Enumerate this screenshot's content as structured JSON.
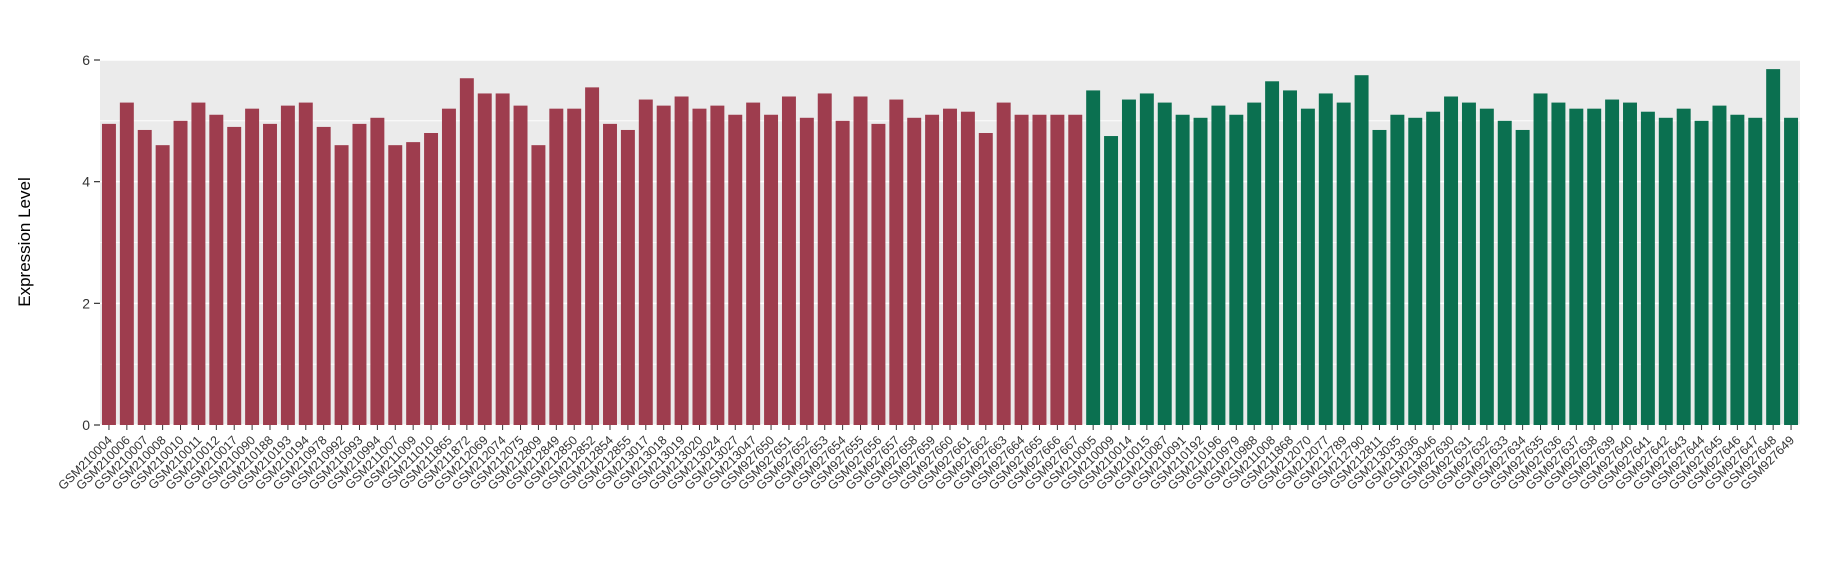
{
  "chart_data": {
    "type": "bar",
    "title": "",
    "xlabel": "",
    "ylabel": "Expression Level",
    "ylim": [
      0,
      6
    ],
    "yticks": [
      0,
      2,
      4,
      6
    ],
    "minor_yticks": [
      1,
      3,
      5
    ],
    "grid": true,
    "legend": "none",
    "panel_bg": "#ebebeb",
    "grid_color": "#ffffff",
    "tick_color": "#333333",
    "group_colors": {
      "group1": "#9e3d4e",
      "group2": "#0b7050"
    },
    "bars": [
      {
        "label": "GSM210004",
        "value": 4.95,
        "group": "group1"
      },
      {
        "label": "GSM210006",
        "value": 5.3,
        "group": "group1"
      },
      {
        "label": "GSM210007",
        "value": 4.85,
        "group": "group1"
      },
      {
        "label": "GSM210008",
        "value": 4.6,
        "group": "group1"
      },
      {
        "label": "GSM210010",
        "value": 5.0,
        "group": "group1"
      },
      {
        "label": "GSM210011",
        "value": 5.3,
        "group": "group1"
      },
      {
        "label": "GSM210012",
        "value": 5.1,
        "group": "group1"
      },
      {
        "label": "GSM210017",
        "value": 4.9,
        "group": "group1"
      },
      {
        "label": "GSM210090",
        "value": 5.2,
        "group": "group1"
      },
      {
        "label": "GSM210188",
        "value": 4.95,
        "group": "group1"
      },
      {
        "label": "GSM210193",
        "value": 5.25,
        "group": "group1"
      },
      {
        "label": "GSM210194",
        "value": 5.3,
        "group": "group1"
      },
      {
        "label": "GSM210978",
        "value": 4.9,
        "group": "group1"
      },
      {
        "label": "GSM210992",
        "value": 4.6,
        "group": "group1"
      },
      {
        "label": "GSM210993",
        "value": 4.95,
        "group": "group1"
      },
      {
        "label": "GSM210994",
        "value": 5.05,
        "group": "group1"
      },
      {
        "label": "GSM211007",
        "value": 4.6,
        "group": "group1"
      },
      {
        "label": "GSM211009",
        "value": 4.65,
        "group": "group1"
      },
      {
        "label": "GSM211010",
        "value": 4.8,
        "group": "group1"
      },
      {
        "label": "GSM211865",
        "value": 5.2,
        "group": "group1"
      },
      {
        "label": "GSM211872",
        "value": 5.7,
        "group": "group1"
      },
      {
        "label": "GSM212069",
        "value": 5.45,
        "group": "group1"
      },
      {
        "label": "GSM212074",
        "value": 5.45,
        "group": "group1"
      },
      {
        "label": "GSM212075",
        "value": 5.25,
        "group": "group1"
      },
      {
        "label": "GSM212809",
        "value": 4.6,
        "group": "group1"
      },
      {
        "label": "GSM212849",
        "value": 5.2,
        "group": "group1"
      },
      {
        "label": "GSM212850",
        "value": 5.2,
        "group": "group1"
      },
      {
        "label": "GSM212852",
        "value": 5.55,
        "group": "group1"
      },
      {
        "label": "GSM212854",
        "value": 4.95,
        "group": "group1"
      },
      {
        "label": "GSM212855",
        "value": 4.85,
        "group": "group1"
      },
      {
        "label": "GSM213017",
        "value": 5.35,
        "group": "group1"
      },
      {
        "label": "GSM213018",
        "value": 5.25,
        "group": "group1"
      },
      {
        "label": "GSM213019",
        "value": 5.4,
        "group": "group1"
      },
      {
        "label": "GSM213020",
        "value": 5.2,
        "group": "group1"
      },
      {
        "label": "GSM213024",
        "value": 5.25,
        "group": "group1"
      },
      {
        "label": "GSM213027",
        "value": 5.1,
        "group": "group1"
      },
      {
        "label": "GSM213047",
        "value": 5.3,
        "group": "group1"
      },
      {
        "label": "GSM927650",
        "value": 5.1,
        "group": "group1"
      },
      {
        "label": "GSM927651",
        "value": 5.4,
        "group": "group1"
      },
      {
        "label": "GSM927652",
        "value": 5.05,
        "group": "group1"
      },
      {
        "label": "GSM927653",
        "value": 5.45,
        "group": "group1"
      },
      {
        "label": "GSM927654",
        "value": 5.0,
        "group": "group1"
      },
      {
        "label": "GSM927655",
        "value": 5.4,
        "group": "group1"
      },
      {
        "label": "GSM927656",
        "value": 4.95,
        "group": "group1"
      },
      {
        "label": "GSM927657",
        "value": 5.35,
        "group": "group1"
      },
      {
        "label": "GSM927658",
        "value": 5.05,
        "group": "group1"
      },
      {
        "label": "GSM927659",
        "value": 5.1,
        "group": "group1"
      },
      {
        "label": "GSM927660",
        "value": 5.2,
        "group": "group1"
      },
      {
        "label": "GSM927661",
        "value": 5.15,
        "group": "group1"
      },
      {
        "label": "GSM927662",
        "value": 4.8,
        "group": "group1"
      },
      {
        "label": "GSM927663",
        "value": 5.3,
        "group": "group1"
      },
      {
        "label": "GSM927664",
        "value": 5.1,
        "group": "group1"
      },
      {
        "label": "GSM927665",
        "value": 5.1,
        "group": "group1"
      },
      {
        "label": "GSM927666",
        "value": 5.1,
        "group": "group1"
      },
      {
        "label": "GSM927667",
        "value": 5.1,
        "group": "group1"
      },
      {
        "label": "GSM210005",
        "value": 5.5,
        "group": "group2"
      },
      {
        "label": "GSM210009",
        "value": 4.75,
        "group": "group2"
      },
      {
        "label": "GSM210014",
        "value": 5.35,
        "group": "group2"
      },
      {
        "label": "GSM210015",
        "value": 5.45,
        "group": "group2"
      },
      {
        "label": "GSM210087",
        "value": 5.3,
        "group": "group2"
      },
      {
        "label": "GSM210091",
        "value": 5.1,
        "group": "group2"
      },
      {
        "label": "GSM210192",
        "value": 5.05,
        "group": "group2"
      },
      {
        "label": "GSM210196",
        "value": 5.25,
        "group": "group2"
      },
      {
        "label": "GSM210979",
        "value": 5.1,
        "group": "group2"
      },
      {
        "label": "GSM210988",
        "value": 5.3,
        "group": "group2"
      },
      {
        "label": "GSM211008",
        "value": 5.65,
        "group": "group2"
      },
      {
        "label": "GSM211868",
        "value": 5.5,
        "group": "group2"
      },
      {
        "label": "GSM212070",
        "value": 5.2,
        "group": "group2"
      },
      {
        "label": "GSM212077",
        "value": 5.45,
        "group": "group2"
      },
      {
        "label": "GSM212789",
        "value": 5.3,
        "group": "group2"
      },
      {
        "label": "GSM212790",
        "value": 5.75,
        "group": "group2"
      },
      {
        "label": "GSM212811",
        "value": 4.85,
        "group": "group2"
      },
      {
        "label": "GSM213035",
        "value": 5.1,
        "group": "group2"
      },
      {
        "label": "GSM213036",
        "value": 5.05,
        "group": "group2"
      },
      {
        "label": "GSM213046",
        "value": 5.15,
        "group": "group2"
      },
      {
        "label": "GSM927630",
        "value": 5.4,
        "group": "group2"
      },
      {
        "label": "GSM927631",
        "value": 5.3,
        "group": "group2"
      },
      {
        "label": "GSM927632",
        "value": 5.2,
        "group": "group2"
      },
      {
        "label": "GSM927633",
        "value": 5.0,
        "group": "group2"
      },
      {
        "label": "GSM927634",
        "value": 4.85,
        "group": "group2"
      },
      {
        "label": "GSM927635",
        "value": 5.45,
        "group": "group2"
      },
      {
        "label": "GSM927636",
        "value": 5.3,
        "group": "group2"
      },
      {
        "label": "GSM927637",
        "value": 5.2,
        "group": "group2"
      },
      {
        "label": "GSM927638",
        "value": 5.2,
        "group": "group2"
      },
      {
        "label": "GSM927639",
        "value": 5.35,
        "group": "group2"
      },
      {
        "label": "GSM927640",
        "value": 5.3,
        "group": "group2"
      },
      {
        "label": "GSM927641",
        "value": 5.15,
        "group": "group2"
      },
      {
        "label": "GSM927642",
        "value": 5.05,
        "group": "group2"
      },
      {
        "label": "GSM927643",
        "value": 5.2,
        "group": "group2"
      },
      {
        "label": "GSM927644",
        "value": 5.0,
        "group": "group2"
      },
      {
        "label": "GSM927645",
        "value": 5.25,
        "group": "group2"
      },
      {
        "label": "GSM927646",
        "value": 5.1,
        "group": "group2"
      },
      {
        "label": "GSM927647",
        "value": 5.05,
        "group": "group2"
      },
      {
        "label": "GSM927648",
        "value": 5.85,
        "group": "group2"
      },
      {
        "label": "GSM927649",
        "value": 5.05,
        "group": "group2"
      }
    ]
  }
}
